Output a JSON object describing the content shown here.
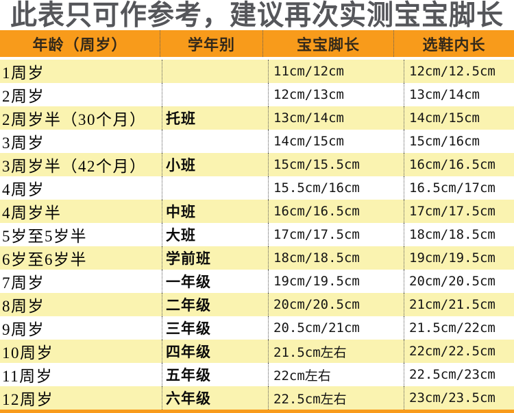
{
  "banner": {
    "title": "此表只可作参考，建议再次实测宝宝脚长"
  },
  "table": {
    "columns": [
      {
        "label": "年龄（周岁）"
      },
      {
        "label": "学年别"
      },
      {
        "label": "宝宝脚长"
      },
      {
        "label": "选鞋内长"
      }
    ],
    "rows": [
      {
        "age": "1周岁",
        "grade": "",
        "foot": "11cm/12cm",
        "inner": "12cm/12.5cm"
      },
      {
        "age": "2周岁",
        "grade": "",
        "foot": "12cm/13cm",
        "inner": "13cm/14cm"
      },
      {
        "age": "2周岁半（30个月）",
        "grade": "托班",
        "foot": "13cm/14cm",
        "inner": "14cm/15cm"
      },
      {
        "age": "3周岁",
        "grade": "",
        "foot": "14cm/15cm",
        "inner": "15cm/16cm"
      },
      {
        "age": "3周岁半（42个月）",
        "grade": "小班",
        "foot": "15cm/15.5cm",
        "inner": "16cm/16.5cm"
      },
      {
        "age": "4周岁",
        "grade": "",
        "foot": "15.5cm/16cm",
        "inner": "16.5cm/17cm"
      },
      {
        "age": "4周岁半",
        "grade": "中班",
        "foot": "16cm/16.5cm",
        "inner": "17cm/17.5cm"
      },
      {
        "age": "5岁至5岁半",
        "grade": "大班",
        "foot": "17cm/17.5cm",
        "inner": "18cm/18.5cm"
      },
      {
        "age": "6岁至6岁半",
        "grade": "学前班",
        "foot": "18cm/18.5cm",
        "inner": "19cm/19.5cm"
      },
      {
        "age": "7周岁",
        "grade": "一年级",
        "foot": "19cm/19.5cm",
        "inner": "20cm/20.5cm"
      },
      {
        "age": "8周岁",
        "grade": "二年级",
        "foot": "20cm/20.5cm",
        "inner": "21cm/21.5cm"
      },
      {
        "age": "9周岁",
        "grade": "三年级",
        "foot": "20.5cm/21cm",
        "inner": "21.5cm/22cm"
      },
      {
        "age": "10周岁",
        "grade": "四年级",
        "foot": "21.5cm左右",
        "inner": "22cm/22.5cm"
      },
      {
        "age": "11周岁",
        "grade": "五年级",
        "foot": "22cm左右",
        "inner": "22.5cm/23cm"
      },
      {
        "age": "12周岁",
        "grade": "六年级",
        "foot": "22.5cm左右",
        "inner": "23cm/23.5cm"
      }
    ]
  },
  "colors": {
    "header_bg": "#F89B1B",
    "row_alt_bg": "#FAF3B0",
    "title_color": "#55565A",
    "bottom_strip": "#F89B1B"
  }
}
